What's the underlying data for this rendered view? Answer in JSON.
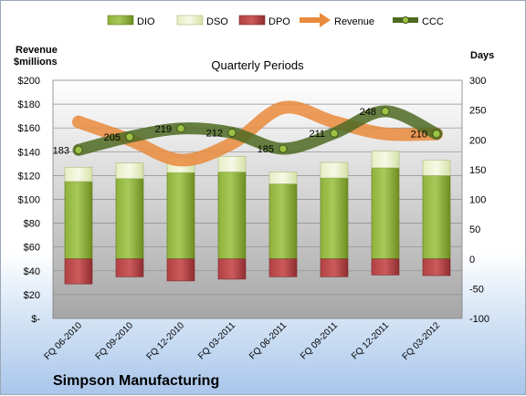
{
  "chart_data": {
    "type": "bar",
    "title": "Quarterly Periods",
    "company": "Simpson Manufacturing",
    "left_axis_label_line1": "Revenue",
    "left_axis_label_line2": "$millions",
    "right_axis_label": "Days",
    "categories": [
      "FQ 06-2010",
      "FQ 09-2010",
      "FQ 12-2010",
      "FQ 03-2011",
      "FQ 06-2011",
      "FQ 09-2011",
      "FQ 12-2011",
      "FQ 03-2012"
    ],
    "left_ticks": [
      "$-",
      "$20",
      "$40",
      "$60",
      "$80",
      "$100",
      "$120",
      "$140",
      "$160",
      "$180",
      "$200"
    ],
    "right_ticks": [
      "-100",
      "-50",
      "0",
      "50",
      "100",
      "150",
      "200",
      "250",
      "300"
    ],
    "ylim_left": [
      0,
      200
    ],
    "ylim_right": [
      -100,
      300
    ],
    "legend": [
      "DIO",
      "DSO",
      "DPO",
      "Revenue",
      "CCC"
    ],
    "legend_position": "top",
    "series": [
      {
        "name": "DIO",
        "axis": "right",
        "values": [
          130,
          135,
          145,
          146,
          126,
          136,
          153,
          140
        ],
        "color": "#7a9a28"
      },
      {
        "name": "DSO",
        "axis": "right",
        "values": [
          24,
          26,
          26,
          26,
          20,
          26,
          28,
          26
        ],
        "color": "#e8f0c4"
      },
      {
        "name": "DPO",
        "axis": "right",
        "values": [
          -42,
          -30,
          -37,
          -34,
          -30,
          -30,
          -27,
          -28
        ],
        "color": "#a83a3c"
      },
      {
        "name": "Revenue",
        "axis": "left",
        "values": [
          165,
          150,
          133,
          147,
          177,
          165,
          155,
          155
        ],
        "color": "#e98a3c"
      },
      {
        "name": "CCC",
        "axis": "right",
        "values": [
          183,
          205,
          219,
          212,
          185,
          211,
          248,
          210
        ],
        "color": "#4e6a22"
      }
    ],
    "ccc_labels": [
      "183",
      "205",
      "219",
      "212",
      "185",
      "211",
      "248",
      "210"
    ]
  }
}
